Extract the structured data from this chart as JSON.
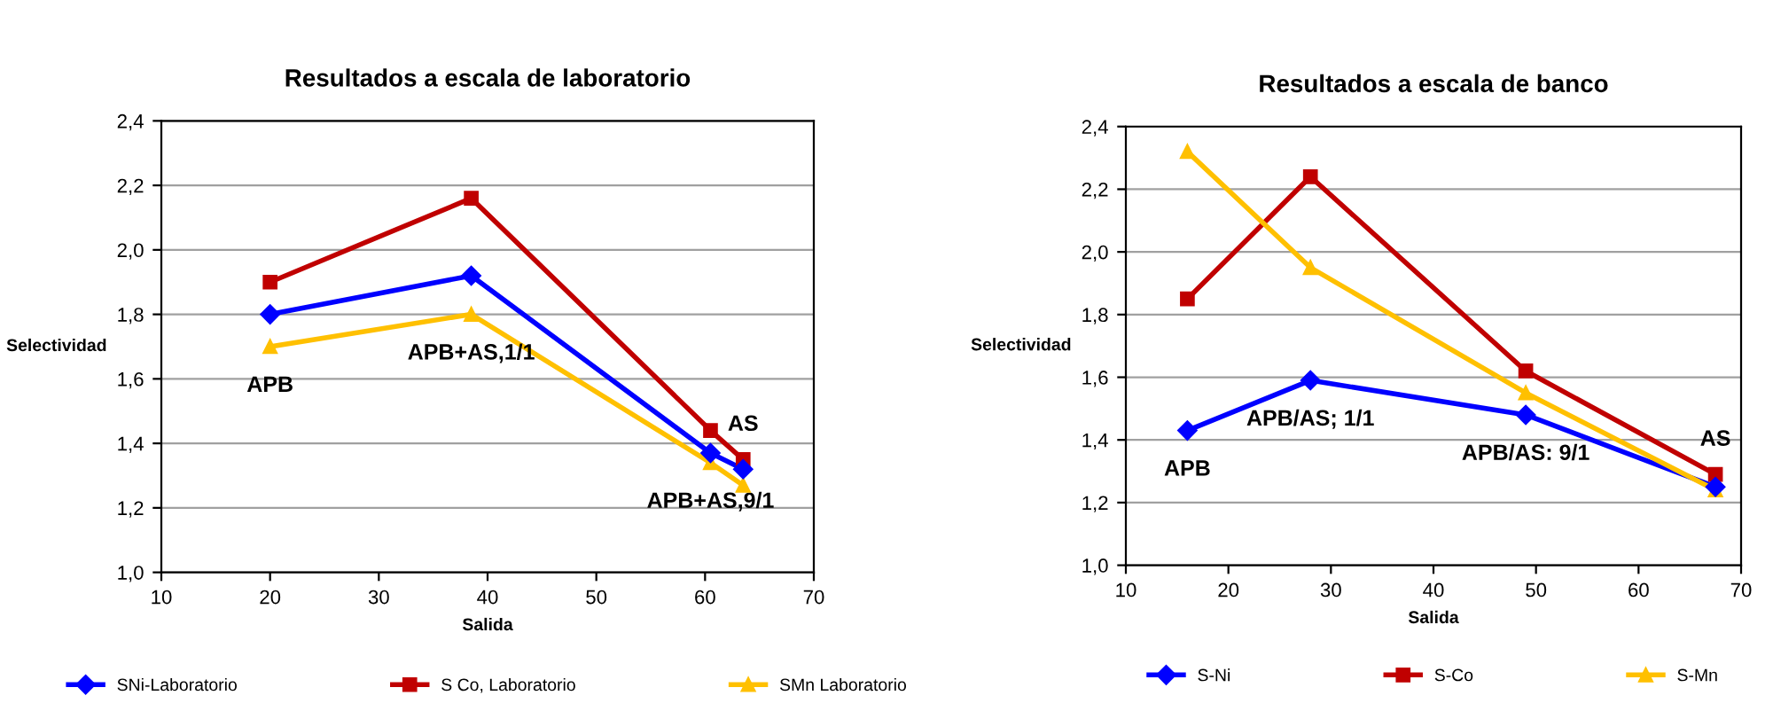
{
  "chart_data": [
    {
      "type": "line",
      "title": "Resultados a escala de laboratorio",
      "xlabel": "Salida",
      "ylabel": "Selectividad",
      "xlim": [
        10,
        70
      ],
      "xticks": [
        10,
        20,
        30,
        40,
        50,
        60,
        70
      ],
      "ylim": [
        1.0,
        2.4
      ],
      "yticks": [
        {
          "value": 1.0,
          "label": "1,0"
        },
        {
          "value": 1.2,
          "label": "1,2"
        },
        {
          "value": 1.4,
          "label": "1,4"
        },
        {
          "value": 1.6,
          "label": "1,6"
        },
        {
          "value": 1.8,
          "label": "1,8"
        },
        {
          "value": 2.0,
          "label": "2,0"
        },
        {
          "value": 2.2,
          "label": "2,2"
        },
        {
          "value": 2.4,
          "label": "2,4"
        }
      ],
      "x": [
        20,
        38.5,
        60.5,
        63.5
      ],
      "series": [
        {
          "name": "SNi-Laboratorio",
          "color": "#0000ff",
          "marker": "diamond",
          "values": [
            1.8,
            1.92,
            1.37,
            1.32
          ]
        },
        {
          "name": "S Co, Laboratorio",
          "color": "#c00000",
          "marker": "square",
          "values": [
            1.9,
            2.16,
            1.44,
            1.35
          ]
        },
        {
          "name": "SMn Laboratorio",
          "color": "#ffc000",
          "marker": "triangle",
          "values": [
            1.7,
            1.8,
            1.34,
            1.27
          ]
        }
      ],
      "annotations": [
        "APB",
        "APB+AS,1/1",
        "APB+AS,9/1",
        "AS"
      ],
      "grid": "y",
      "legend": "bottom"
    },
    {
      "type": "line",
      "title": "Resultados a escala de banco",
      "xlabel": "Salida",
      "ylabel": "Selectividad",
      "xlim": [
        10,
        70
      ],
      "xticks": [
        10,
        20,
        30,
        40,
        50,
        60,
        70
      ],
      "ylim": [
        1.0,
        2.4
      ],
      "yticks": [
        {
          "value": 1.0,
          "label": "1,0"
        },
        {
          "value": 1.2,
          "label": "1,2"
        },
        {
          "value": 1.4,
          "label": "1,4"
        },
        {
          "value": 1.6,
          "label": "1,6"
        },
        {
          "value": 1.8,
          "label": "1,8"
        },
        {
          "value": 2.0,
          "label": "2,0"
        },
        {
          "value": 2.2,
          "label": "2,2"
        },
        {
          "value": 2.4,
          "label": "2,4"
        }
      ],
      "x": [
        16,
        28,
        49,
        67.5
      ],
      "series": [
        {
          "name": "S-Ni",
          "color": "#0000ff",
          "marker": "diamond",
          "values": [
            1.43,
            1.59,
            1.48,
            1.25
          ]
        },
        {
          "name": "S-Co",
          "color": "#c00000",
          "marker": "square",
          "values": [
            1.85,
            2.24,
            1.62,
            1.29
          ]
        },
        {
          "name": "S-Mn",
          "color": "#ffc000",
          "marker": "triangle",
          "values": [
            2.32,
            1.95,
            1.55,
            1.24
          ]
        }
      ],
      "annotations": [
        "APB",
        "APB/AS; 1/1",
        "APB/AS: 9/1",
        "AS"
      ],
      "grid": "y",
      "legend": "bottom"
    }
  ]
}
